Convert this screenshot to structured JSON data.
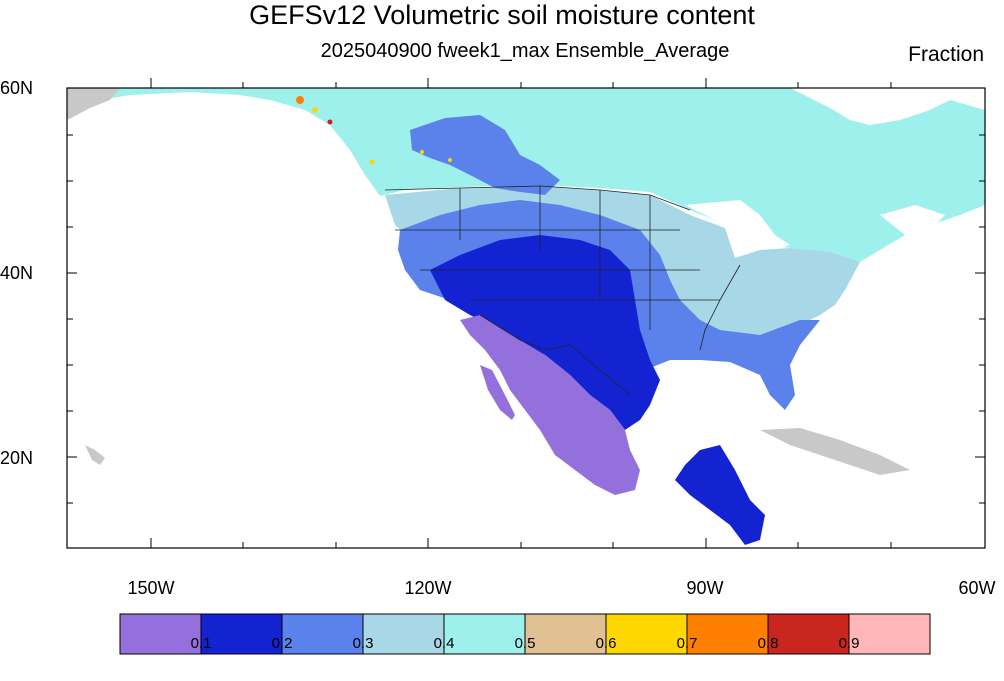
{
  "title": "GEFSv12 Volumetric soil moisture content",
  "subtitle": "2025040900 fweek1_max Ensemble_Average",
  "units": "Fraction",
  "lat_labels": [
    "60N",
    "40N",
    "20N"
  ],
  "lon_labels": [
    "150W",
    "120W",
    "90W",
    "60W"
  ],
  "colorbar": {
    "colors": [
      "#9370db",
      "#1423d2",
      "#5b82ea",
      "#a8d8e8",
      "#9ef0ec",
      "#dfc193",
      "#ffd700",
      "#ff7f00",
      "#c8261e",
      "#ffb6b9"
    ],
    "labels": [
      "0.1",
      "0.2",
      "0.3",
      "0.4",
      "0.5",
      "0.6",
      "0.7",
      "0.8",
      "0.9"
    ]
  },
  "colors": {
    "no_data": "#c8c8c8",
    "ocean": "#ffffff",
    "boundary": "#222222"
  }
}
